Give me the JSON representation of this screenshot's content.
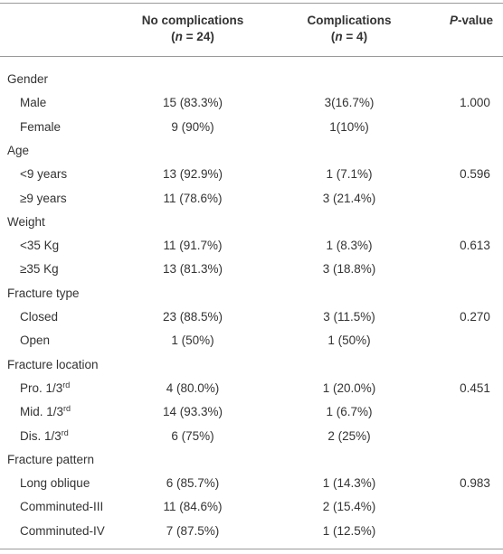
{
  "header": {
    "no_complications": {
      "title": "No complications",
      "n_open": "(",
      "n_var": "n",
      "n_rest": " = 24)"
    },
    "complications": {
      "title": "Complications",
      "n_open": "(",
      "n_var": "n",
      "n_rest": " = 4)"
    },
    "p_value": {
      "var": "P",
      "rest": "-value"
    }
  },
  "groups": [
    {
      "title": "Gender",
      "p_value": "1.000",
      "rows": [
        {
          "label": "Male",
          "no_complications": "15 (83.3%)",
          "complications": "3(16.7%)"
        },
        {
          "label": "Female",
          "no_complications": "9 (90%)",
          "complications": "1(10%)"
        }
      ]
    },
    {
      "title": "Age",
      "p_value": "0.596",
      "rows": [
        {
          "label": "<9 years",
          "no_complications": "13 (92.9%)",
          "complications": "1 (7.1%)"
        },
        {
          "label": "≥9 years",
          "no_complications": "11 (78.6%)",
          "complications": "3 (21.4%)"
        }
      ]
    },
    {
      "title": "Weight",
      "p_value": "0.613",
      "rows": [
        {
          "label": "<35 Kg",
          "no_complications": "11 (91.7%)",
          "complications": "1 (8.3%)"
        },
        {
          "label": "≥35 Kg",
          "no_complications": "13 (81.3%)",
          "complications": "3 (18.8%)"
        }
      ]
    },
    {
      "title": "Fracture type",
      "p_value": "0.270",
      "rows": [
        {
          "label": "Closed",
          "no_complications": "23 (88.5%)",
          "complications": "3 (11.5%)"
        },
        {
          "label": "Open",
          "no_complications": "1 (50%)",
          "complications": "1 (50%)"
        }
      ]
    },
    {
      "title": "Fracture location",
      "p_value": "0.451",
      "rows": [
        {
          "label": "Pro. 1/3",
          "sup": "rd",
          "no_complications": "4 (80.0%)",
          "complications": "1 (20.0%)"
        },
        {
          "label": "Mid. 1/3",
          "sup": "rd",
          "no_complications": "14 (93.3%)",
          "complications": "1 (6.7%)"
        },
        {
          "label": "Dis. 1/3",
          "sup": "rd",
          "no_complications": "6 (75%)",
          "complications": "2 (25%)"
        }
      ]
    },
    {
      "title": "Fracture pattern",
      "p_value": "0.983",
      "rows": [
        {
          "label": "Long oblique",
          "no_complications": "6 (85.7%)",
          "complications": "1 (14.3%)"
        },
        {
          "label": "Comminuted-III",
          "no_complications": "11 (84.6%)",
          "complications": "2 (15.4%)"
        },
        {
          "label": "Comminuted-IV",
          "no_complications": "7 (87.5%)",
          "complications": "1 (12.5%)"
        }
      ]
    }
  ]
}
